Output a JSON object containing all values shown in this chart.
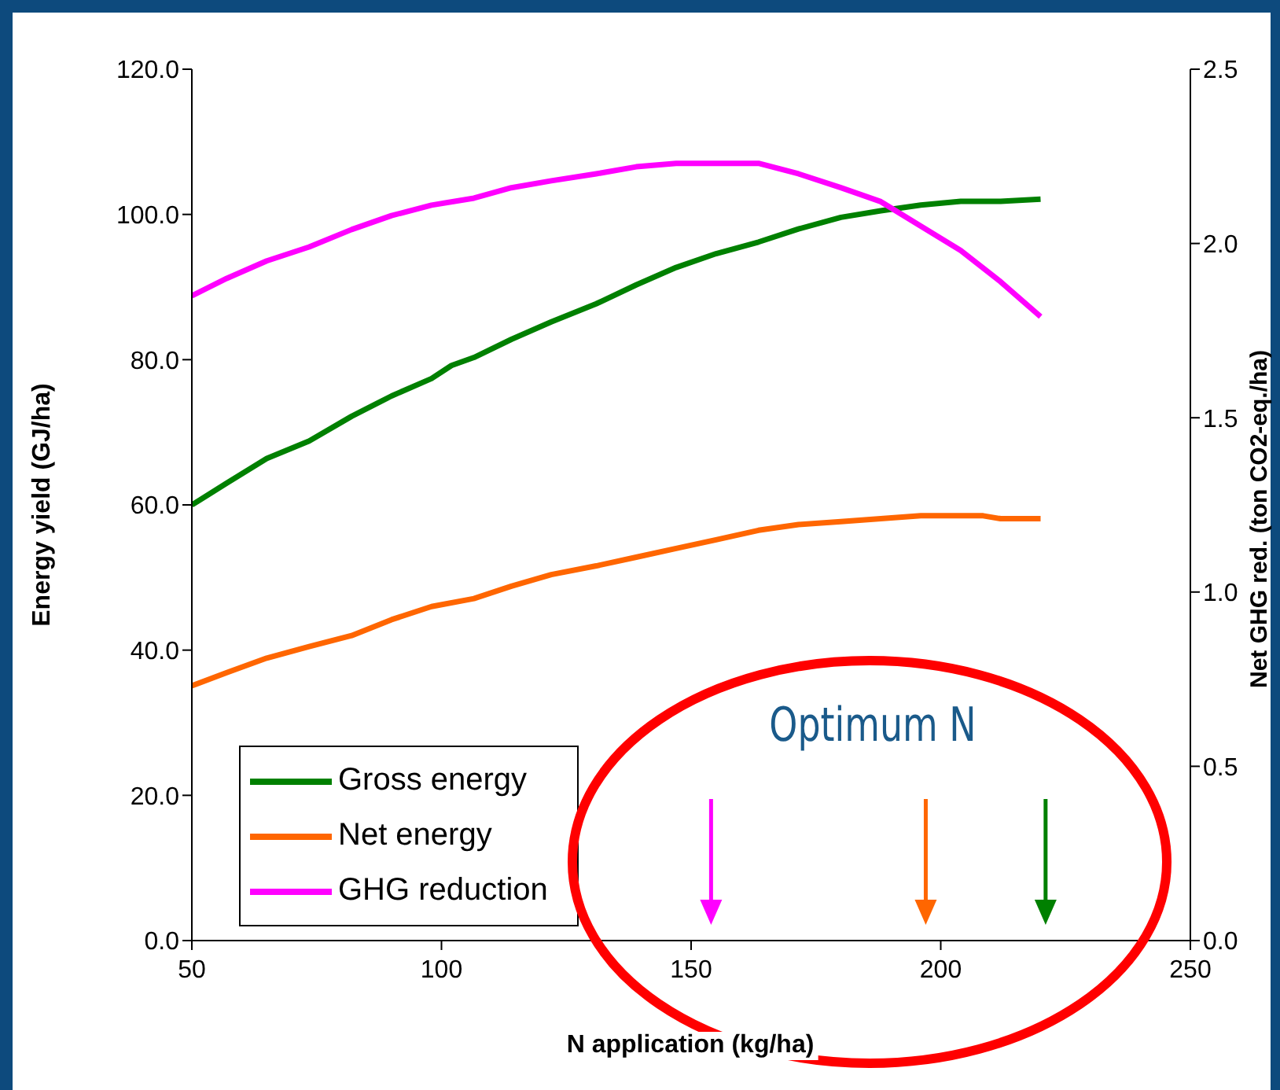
{
  "chart_data": {
    "type": "line",
    "xlabel": "N application (kg/ha)",
    "ylabel": "Energy yield (GJ/ha)",
    "y2label": "Net GHG red. (ton CO2-eq./ha)",
    "annotations": [
      "Optimum N"
    ],
    "series": [
      {
        "name": "Gross energy",
        "color": "#008000",
        "x": [
          50,
          57,
          65,
          73.5,
          82,
          90,
          98,
          102,
          106.5,
          114,
          122,
          131,
          139,
          147,
          155,
          163.5,
          171.5,
          180,
          188,
          196,
          204,
          212,
          220
        ],
        "values": [
          60,
          63,
          66.4,
          68.8,
          72.2,
          75.0,
          77.4,
          79.2,
          80.3,
          82.8,
          85.2,
          87.7,
          90.3,
          92.7,
          94.6,
          96.2,
          98.0,
          99.6,
          100.5,
          101.3,
          101.8,
          101.8,
          102.1
        ]
      },
      {
        "name": "Net energy",
        "color": "#ff6600",
        "x": [
          50,
          57,
          65,
          73.5,
          82,
          90,
          98,
          106.5,
          114,
          122,
          131,
          139,
          147,
          155,
          163.5,
          171.5,
          180,
          188,
          196,
          204,
          208.5,
          212,
          220
        ],
        "values": [
          35.1,
          36.9,
          38.9,
          40.5,
          42.0,
          44.2,
          46.0,
          47.1,
          48.8,
          50.4,
          51.6,
          52.8,
          54.0,
          55.2,
          56.5,
          57.3,
          57.7,
          58.1,
          58.5,
          58.5,
          58.5,
          58.1,
          58.1
        ]
      },
      {
        "name": "GHG reduction",
        "color": "#ff00ff",
        "axis": "y2",
        "x": [
          50,
          57,
          65,
          73.5,
          82,
          90,
          98,
          106.5,
          114,
          122,
          131,
          139,
          147,
          155,
          163.5,
          171.5,
          180,
          188,
          196,
          204,
          212,
          220
        ],
        "values": [
          1.85,
          1.9,
          1.95,
          1.99,
          2.04,
          2.08,
          2.11,
          2.13,
          2.16,
          2.18,
          2.2,
          2.22,
          2.23,
          2.23,
          2.23,
          2.2,
          2.16,
          2.12,
          2.05,
          1.98,
          1.89,
          1.79
        ]
      }
    ],
    "ref_lines": [
      {
        "axis": "x",
        "value": 154,
        "color": "#ff00ff"
      },
      {
        "axis": "x",
        "value": 197,
        "color": "#ff6600"
      },
      {
        "axis": "x",
        "value": 221,
        "color": "#008000"
      }
    ],
    "xlim": [
      50,
      250
    ],
    "xticks": [
      50,
      100,
      150,
      200,
      250
    ],
    "ylim": [
      0,
      120
    ],
    "yticks": [
      {
        "value": 0,
        "label": "0.0"
      },
      {
        "value": 20,
        "label": "20.0"
      },
      {
        "value": 40,
        "label": "40.0"
      },
      {
        "value": 60,
        "label": "60.0"
      },
      {
        "value": 80,
        "label": "80.0"
      },
      {
        "value": 100,
        "label": "100.0"
      },
      {
        "value": 120,
        "label": "120.0"
      }
    ],
    "y2lim": [
      0,
      2.5
    ],
    "y2ticks": [
      {
        "value": 0,
        "label": "0.0"
      },
      {
        "value": 0.5,
        "label": "0.5"
      },
      {
        "value": 1,
        "label": "1.0"
      },
      {
        "value": 1.5,
        "label": "1.5"
      },
      {
        "value": 2,
        "label": "2.0"
      },
      {
        "value": 2.5,
        "label": "2.5"
      }
    ],
    "legend": "bottom left",
    "grid": false,
    "marker": "none",
    "line_style": "solid"
  }
}
